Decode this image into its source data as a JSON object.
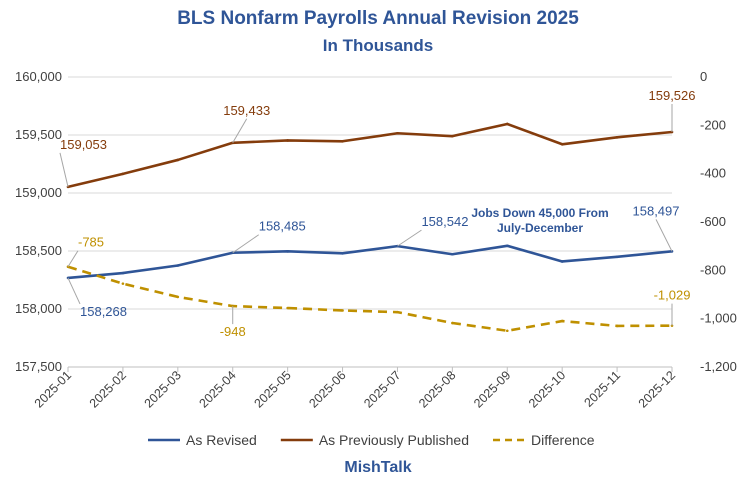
{
  "chart_data": {
    "type": "line",
    "title": "BLS Nonfarm Payrolls Annual Revision 2025",
    "subtitle": "In Thousands",
    "credit": "MishTalk",
    "annotation": "Jobs Down 45,000 From July-December",
    "categories": [
      "2025-01",
      "2025-02",
      "2025-03",
      "2025-04",
      "2025-05",
      "2025-06",
      "2025-07",
      "2025-08",
      "2025-09",
      "2025-10",
      "2025-11",
      "2025-12"
    ],
    "left_axis": {
      "ylim": [
        157500,
        160000
      ],
      "ticks": [
        "157,500",
        "158,000",
        "158,500",
        "159,000",
        "159,500",
        "160,000"
      ]
    },
    "right_axis": {
      "ylim": [
        -1200,
        0
      ],
      "ticks": [
        "-1,200",
        "-1,000",
        "-800",
        "-600",
        "-400",
        "-200",
        "0"
      ]
    },
    "grid": "horizontal",
    "legend": "bottom",
    "series": [
      {
        "name": "As Revised",
        "axis": "left",
        "color": "#2f5597",
        "style": "solid",
        "values": [
          158268,
          158310,
          158375,
          158485,
          158497,
          158480,
          158542,
          158472,
          158545,
          158410,
          158450,
          158497
        ],
        "data_labels": [
          {
            "index": 0,
            "text": "158,268"
          },
          {
            "index": 3,
            "text": "158,485"
          },
          {
            "index": 6,
            "text": "158,542"
          },
          {
            "index": 11,
            "text": "158,497"
          }
        ]
      },
      {
        "name": "As Previously Published",
        "axis": "left",
        "color": "#843c0c",
        "style": "solid",
        "values": [
          159053,
          159165,
          159285,
          159433,
          159453,
          159446,
          159515,
          159490,
          159595,
          159420,
          159480,
          159526
        ],
        "data_labels": [
          {
            "index": 0,
            "text": "159,053"
          },
          {
            "index": 3,
            "text": "159,433"
          },
          {
            "index": 11,
            "text": "159,526"
          }
        ]
      },
      {
        "name": "Difference",
        "axis": "right",
        "color": "#bf9000",
        "style": "dashed",
        "values": [
          -785,
          -855,
          -910,
          -948,
          -956,
          -966,
          -973,
          -1018,
          -1050,
          -1010,
          -1030,
          -1029
        ],
        "data_labels": [
          {
            "index": 0,
            "text": "-785"
          },
          {
            "index": 3,
            "text": "-948"
          },
          {
            "index": 11,
            "text": "-1,029"
          }
        ]
      }
    ]
  }
}
